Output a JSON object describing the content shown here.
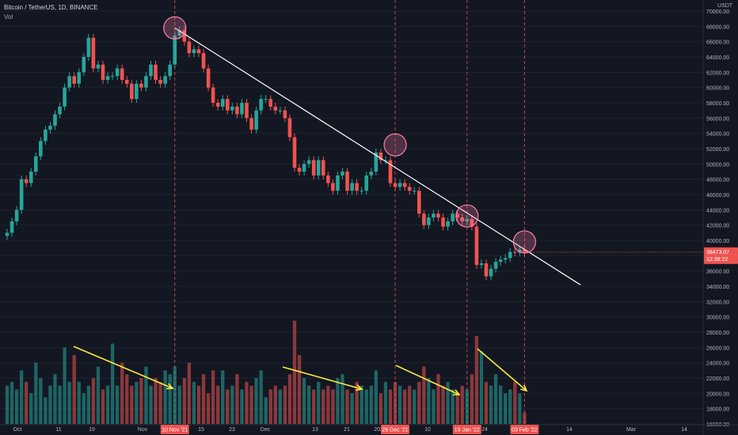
{
  "header": {
    "symbol_line": "Bitcoin / TetherUS, 1D, BINANCE",
    "volume_label": "Vol",
    "currency": "USDT"
  },
  "price_scale": {
    "ticks": [
      "70000.00",
      "68000.00",
      "66000.00",
      "64000.00",
      "62000.00",
      "60000.00",
      "58000.00",
      "56000.00",
      "54000.00",
      "52000.00",
      "50000.00",
      "48000.00",
      "46000.00",
      "44000.00",
      "42000.00",
      "40000.00",
      "38000.00",
      "36000.00",
      "34000.00",
      "32000.00",
      "30000.00",
      "28000.00",
      "26000.00",
      "24000.00",
      "22000.00",
      "20000.00",
      "18000.00",
      "16000.00"
    ],
    "last_price": "38473.07",
    "countdown": "12:38:22"
  },
  "time_scale": {
    "labels": [
      "Oct",
      "11",
      "19",
      "Nov",
      "15",
      "23",
      "Dec",
      "13",
      "21",
      "2022",
      "10",
      "24",
      "14",
      "Mar",
      "14"
    ],
    "highlight_labels": [
      "10 Nov '21",
      "26 Dec '21",
      "19 Jan '22",
      "03 Feb '22"
    ]
  },
  "colors": {
    "background": "#131722",
    "up": "#26a69a",
    "down": "#ef5350",
    "trendline": "#ffffff",
    "marker_line": "#ef5350",
    "arrow": "#ffeb3b",
    "circle": "#ff80ab"
  },
  "chart_data": {
    "type": "candlestick",
    "title": "Bitcoin / TetherUS, 1D, BINANCE",
    "ylim": [
      16000,
      70000
    ],
    "candles_note": "daily BTC/USDT OHLC approximated, Oct 2021 to Feb 2022",
    "closes": [
      41000,
      42500,
      44000,
      48000,
      47500,
      49000,
      51000,
      53000,
      54500,
      55000,
      56500,
      57500,
      60000,
      61500,
      60500,
      62000,
      64000,
      66500,
      62500,
      63000,
      61000,
      61500,
      61500,
      62500,
      61000,
      60500,
      58500,
      60500,
      60000,
      61500,
      63000,
      61000,
      60500,
      61500,
      63000,
      66800,
      67500,
      66000,
      64500,
      65000,
      64500,
      62500,
      60000,
      58000,
      57500,
      58500,
      57000,
      57500,
      56500,
      58000,
      56000,
      54500,
      57000,
      58500,
      58500,
      57500,
      57000,
      57000,
      56000,
      53500,
      49500,
      49000,
      50000,
      50500,
      48500,
      50500,
      48500,
      47500,
      46500,
      48500,
      49000,
      46500,
      47500,
      46500,
      46500,
      48500,
      49000,
      51500,
      50500,
      50500,
      47500,
      47000,
      47500,
      47000,
      46500,
      46500,
      43500,
      42000,
      43000,
      43500,
      43000,
      41800,
      42500,
      43500,
      43000,
      42500,
      42800,
      41800,
      36800,
      37000,
      35300,
      36300,
      37200,
      37500,
      37700,
      38500,
      38400,
      38800,
      38473
    ],
    "volumes": [
      21000,
      21500,
      20500,
      23000,
      21500,
      20000,
      24000,
      22000,
      19500,
      21000,
      22500,
      21000,
      26000,
      21500,
      25000,
      21500,
      20000,
      21000,
      22000,
      23500,
      20500,
      21000,
      26500,
      21000,
      24000,
      22500,
      21000,
      21500,
      22000,
      23500,
      21000,
      22000,
      21500,
      23000,
      22500,
      23500,
      21000,
      22000,
      24000,
      21500,
      21000,
      22500,
      20000,
      23000,
      21000,
      23000,
      20500,
      21000,
      22500,
      20500,
      21500,
      21000,
      22000,
      23000,
      19500,
      20500,
      21000,
      20500,
      21000,
      22500,
      29500,
      25000,
      22000,
      21000,
      20500,
      21500,
      20500,
      21000,
      20500,
      22000,
      22500,
      20500,
      20000,
      21500,
      21000,
      20500,
      21000,
      23000,
      20000,
      21500,
      20500,
      21500,
      21000,
      20500,
      21000,
      20500,
      21500,
      23500,
      22000,
      20500,
      22500,
      21000,
      21500,
      20500,
      20000,
      21000,
      20500,
      22500,
      27500,
      25500,
      21500,
      21000,
      22500,
      21000,
      20000,
      20500,
      21500,
      20000,
      17500
    ],
    "trendline": {
      "start_price": 67800,
      "end_price": 34200
    },
    "touch_points": [
      {
        "index": 35,
        "price": 67800
      },
      {
        "index": 81,
        "price": 52500
      },
      {
        "index": 96,
        "price": 43200
      },
      {
        "index": 108,
        "price": 39800
      }
    ],
    "marker_dates": [
      "10 Nov '21",
      "26 Dec '21",
      "19 Jan '22",
      "03 Feb '22"
    ]
  }
}
